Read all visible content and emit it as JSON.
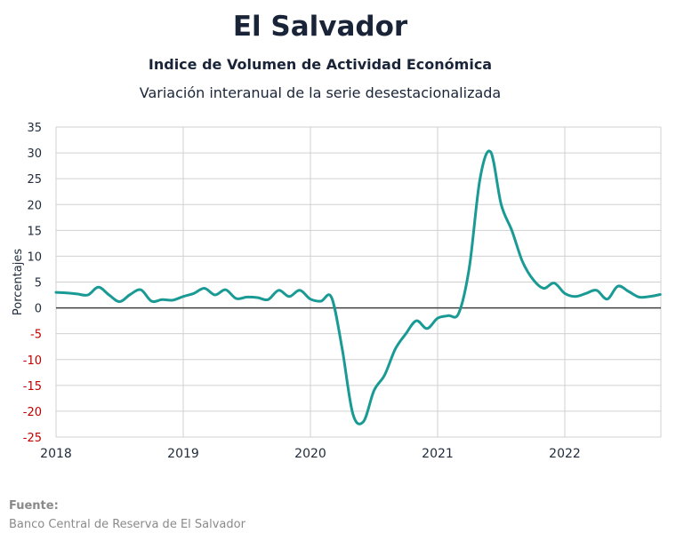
{
  "header": {
    "title": "El Salvador",
    "subtitle": "Indice de Volumen de  Actividad Económica",
    "description": "Variación interanual de la serie desestacionalizada"
  },
  "footer": {
    "source_label": "Fuente:",
    "source_text": "Banco Central de Reserva de El Salvador"
  },
  "colors": {
    "line": "#1a9a94",
    "grid": "#d0d0d0",
    "zero_line": "#404040",
    "negative_tick": "#c00000",
    "positive_tick": "#1f2a3a"
  },
  "chart_data": {
    "type": "line",
    "title": "El Salvador",
    "ylabel": "Porcentajes",
    "xlabel": "",
    "ylim": [
      -25,
      35
    ],
    "yticks": [
      35,
      30,
      25,
      20,
      15,
      10,
      5,
      0,
      -5,
      -10,
      -15,
      -20,
      -25
    ],
    "xticks": [
      "2018",
      "2019",
      "2020",
      "2021",
      "2022"
    ],
    "grid": true,
    "series": [
      {
        "values": [
          3.0,
          2.9,
          2.7,
          2.5,
          4.0,
          2.5,
          1.2,
          2.6,
          3.5,
          1.3,
          1.6,
          1.5,
          2.2,
          2.8,
          3.8,
          2.5,
          3.5,
          1.8,
          2.1,
          2.0,
          1.6,
          3.4,
          2.2,
          3.4,
          1.7,
          1.3,
          2.0,
          -8.0,
          -20.5,
          -22.0,
          -16.0,
          -13.0,
          -8.0,
          -5.0,
          -2.5,
          -4.0,
          -2.0,
          -1.5,
          -1.0,
          8.0,
          25.0,
          30.2,
          20.0,
          15.0,
          9.0,
          5.5,
          3.8,
          4.8,
          2.8,
          2.2,
          2.8,
          3.4,
          1.7,
          4.2,
          3.2,
          2.1,
          2.2,
          2.6
        ]
      }
    ]
  }
}
